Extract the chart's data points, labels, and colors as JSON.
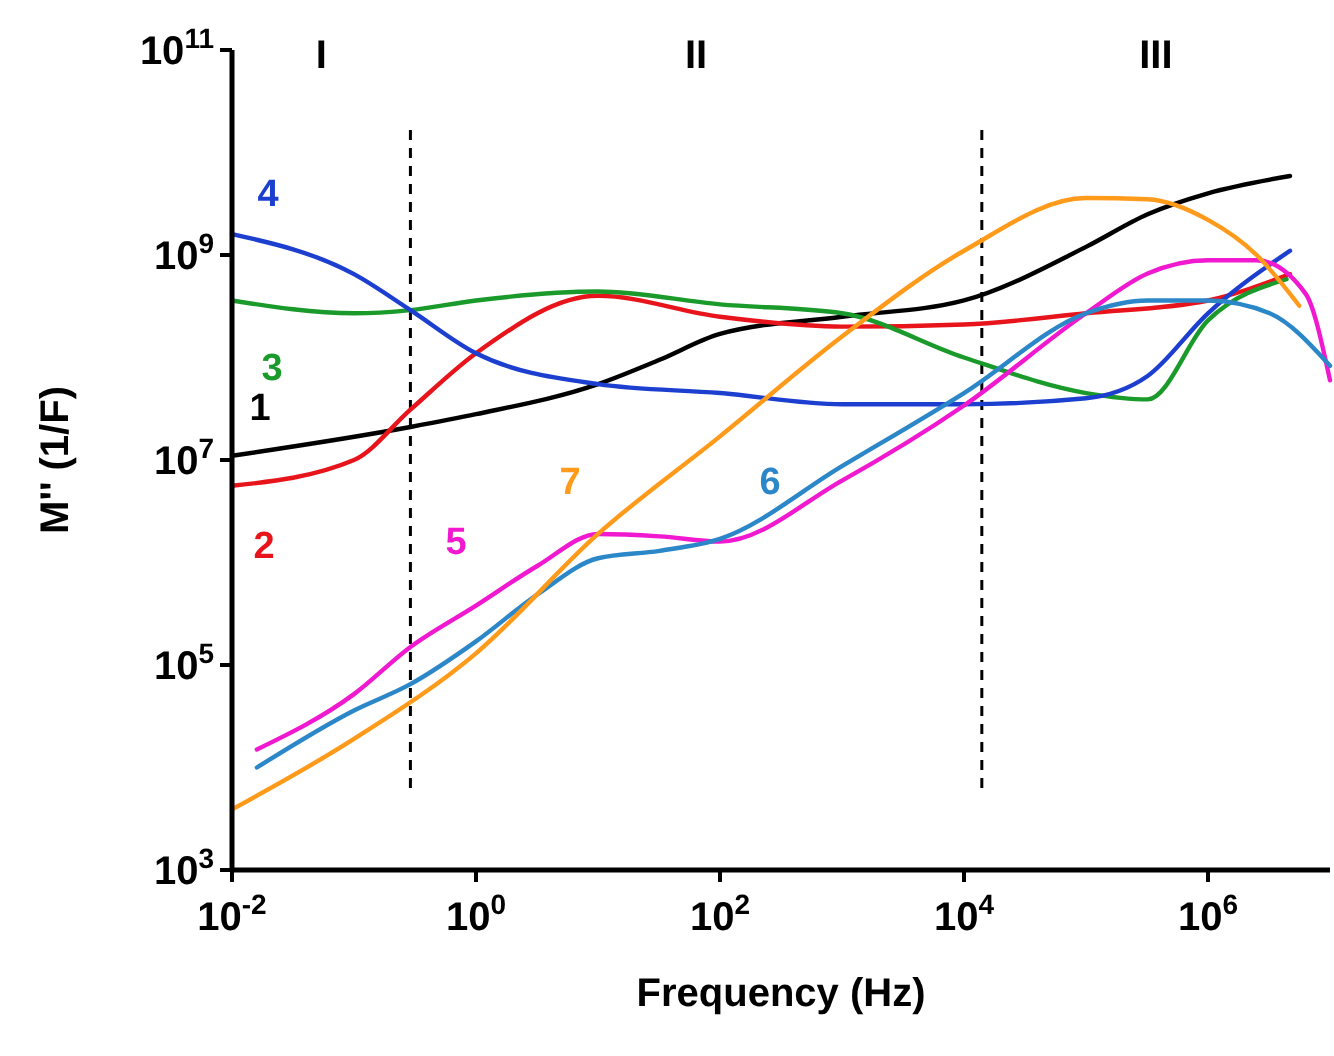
{
  "chart_data": {
    "type": "line",
    "xlabel": "Frequency (Hz)",
    "ylabel": "M'' (1/F)",
    "log": "xy",
    "xlim": [
      0.01,
      10000000
    ],
    "ylim": [
      1000,
      100000000000
    ],
    "xticks": [
      {
        "value": 0.01,
        "label": "10$^{-2}$"
      },
      {
        "value": 1,
        "label": "10$^{0}$"
      },
      {
        "value": 100,
        "label": "10$^{2}$"
      },
      {
        "value": 10000,
        "label": "10$^{4}$"
      },
      {
        "value": 1000000,
        "label": "10$^{6}$"
      }
    ],
    "yticks": [
      {
        "value": 1000,
        "label": "10$^{3}$"
      },
      {
        "value": 100000,
        "label": "10$^{5}$"
      },
      {
        "value": 10000000,
        "label": "10$^{7}$"
      },
      {
        "value": 1000000000,
        "label": "10$^{9}$"
      },
      {
        "value": 100000000000,
        "label": "10$^{11}$"
      }
    ],
    "ref_lines": [
      {
        "axis": "x",
        "value": 0.29,
        "line_style": "dashed",
        "color": "#000000"
      },
      {
        "axis": "x",
        "value": 14000,
        "line_style": "dashed",
        "color": "#000000"
      }
    ],
    "annotations": [
      "I",
      "II",
      "III"
    ],
    "series": [
      {
        "name": "1",
        "color": "#000000",
        "x": [
          0.01,
          0.29,
          1,
          10,
          32,
          100,
          1000,
          10000,
          100000,
          320000,
          1000000,
          4700000
        ],
        "values": [
          11000000,
          21000000,
          28000000,
          55000000,
          95000000,
          170000000,
          250000000,
          360000000,
          1200000000,
          2500000000,
          4000000000,
          5900000000
        ]
      },
      {
        "name": "2",
        "color": "#e8141c",
        "x": [
          0.01,
          0.1,
          0.29,
          1,
          10,
          100,
          1000,
          10000,
          100000,
          1000000,
          4700000
        ],
        "values": [
          5600000,
          10000000,
          31000000,
          110000000,
          400000000,
          250000000,
          200000000,
          210000000,
          270000000,
          360000000,
          650000000
        ]
      },
      {
        "name": "3",
        "color": "#1a9a2a",
        "x": [
          0.01,
          0.1,
          0.29,
          1,
          10,
          100,
          1000,
          10000,
          100000,
          320000,
          1000000,
          4400000
        ],
        "values": [
          360000000,
          270000000,
          290000000,
          360000000,
          440000000,
          330000000,
          270000000,
          100000000,
          45000000,
          39000000,
          230000000,
          580000000
        ]
      },
      {
        "name": "4",
        "color": "#1c3fd0",
        "x": [
          0.01,
          0.1,
          0.29,
          1,
          10,
          100,
          1000,
          10000,
          100000,
          320000,
          1000000,
          4700000
        ],
        "values": [
          1600000000,
          650000000,
          290000000,
          110000000,
          55000000,
          45000000,
          35000000,
          35000000,
          40000000,
          66000000,
          270000000,
          1100000000
        ]
      },
      {
        "name": "5",
        "color": "#f019d0",
        "x": [
          0.016,
          0.1,
          0.29,
          1,
          3.2,
          10,
          32,
          100,
          1000,
          10000,
          100000,
          320000,
          1000000,
          2500000,
          6300000,
          10000000
        ],
        "values": [
          15000,
          52000,
          150000,
          380000,
          930000,
          1900000,
          1800000,
          1600000,
          6300000,
          34000000,
          270000000,
          660000000,
          890000000,
          890000000,
          420000000,
          60000000
        ]
      },
      {
        "name": "6",
        "color": "#2b87c8",
        "x": [
          0.016,
          0.1,
          0.29,
          1,
          3.2,
          10,
          32,
          100,
          1000,
          10000,
          100000,
          320000,
          1000000,
          3200000,
          10000000
        ],
        "values": [
          10000,
          36000,
          65000,
          170000,
          490000,
          1100000,
          1300000,
          1700000,
          8700000,
          45000000,
          270000000,
          360000000,
          360000000,
          270000000,
          83000000
        ]
      },
      {
        "name": "7",
        "color": "#ff9a1a",
        "x": [
          0.01,
          0.1,
          1,
          10,
          100,
          1000,
          10000,
          100000,
          320000,
          1000000,
          2500000,
          5600000
        ],
        "values": [
          3900,
          19000,
          130000,
          1900000,
          17000000,
          160000000,
          1100000000,
          3600000000,
          3500000000,
          2200000000,
          1000000000,
          320000000
        ]
      }
    ]
  }
}
